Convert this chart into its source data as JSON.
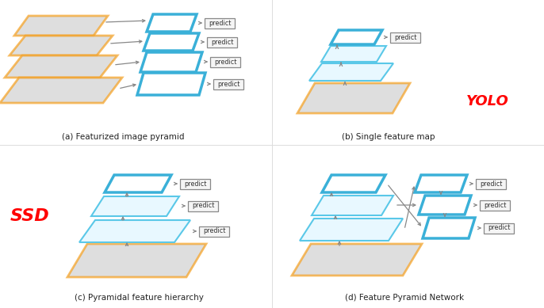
{
  "bg_color": "#ffffff",
  "orange": "#f5a020",
  "blue_light": "#5ac8e8",
  "blue_thick": "#3ab0d8",
  "blue_bold": "#1a9fd0",
  "gray_img": "#c8c8c8",
  "predict_edge": "#888888",
  "predict_face": "#f5f5f5",
  "arrow_color": "#888888",
  "red_color": "#ff0000",
  "text_color": "#222222",
  "label_a": "(a) Featurized image pyramid",
  "label_b": "(b) Single feature map",
  "label_c": "(c) Pyramidal feature hierarchy",
  "label_d": "(d) Feature Pyramid Network",
  "label_yolo": "YOLO",
  "label_ssd": "SSD",
  "predict_text": "predict"
}
